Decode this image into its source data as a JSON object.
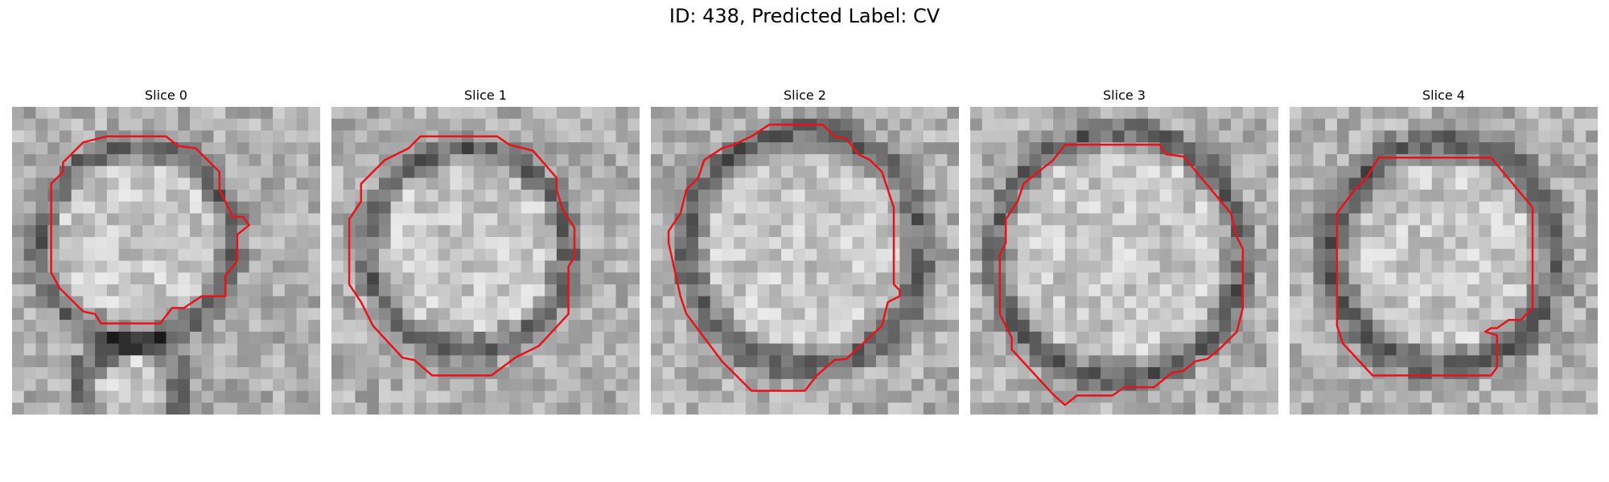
{
  "figure": {
    "title": "ID: 438, Predicted Label: CV"
  },
  "panels": [
    {
      "title": "Slice 0",
      "contour_color": "#e8131a"
    },
    {
      "title": "Slice 1",
      "contour_color": "#e8131a"
    },
    {
      "title": "Slice 2",
      "contour_color": "#e8131a"
    },
    {
      "title": "Slice 3",
      "contour_color": "#e8131a"
    },
    {
      "title": "Slice 4",
      "contour_color": "#e8131a"
    }
  ]
}
